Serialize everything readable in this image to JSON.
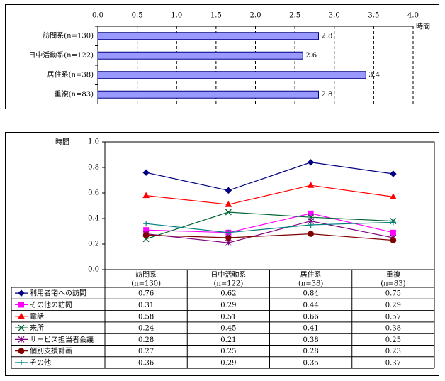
{
  "chart_data": [
    {
      "type": "bar",
      "orientation": "horizontal",
      "categories": [
        "訪問系(n=130)",
        "日中活動系(n=122)",
        "居住系(n=38)",
        "重複(n=83)"
      ],
      "values": [
        2.8,
        2.6,
        3.4,
        2.8
      ],
      "value_labels": [
        "2.8",
        "2.6",
        "3.4",
        "2.8"
      ],
      "xlim": [
        0.0,
        4.0
      ],
      "x_ticks": [
        "0.0",
        "0.5",
        "1.0",
        "1.5",
        "2.0",
        "2.5",
        "3.0",
        "3.5",
        "4.0"
      ],
      "xlabel": "時間",
      "grid": "dashed-vertical",
      "colors": {
        "bar_fill": "#9999ff",
        "bar_edge": "#000080"
      }
    },
    {
      "type": "line",
      "categories": [
        "訪問系\n(n=130)",
        "日中活動系\n(n=122)",
        "居住系\n(n=38)",
        "重複\n(n=83)"
      ],
      "ylabel": "時間",
      "ylim": [
        0.0,
        1.0
      ],
      "y_ticks": [
        "0.0",
        "0.2",
        "0.4",
        "0.6",
        "0.8",
        "1.0"
      ],
      "table": true,
      "series": [
        {
          "name": "利用者宅への訪問",
          "values": [
            0.76,
            0.62,
            0.84,
            0.75
          ],
          "labels": [
            "0.76",
            "0.62",
            "0.84",
            "0.75"
          ],
          "color": "#000080",
          "marker": "diamond"
        },
        {
          "name": "その他の訪問",
          "values": [
            0.31,
            0.29,
            0.44,
            0.29
          ],
          "labels": [
            "0.31",
            "0.29",
            "0.44",
            "0.29"
          ],
          "color": "#ff00ff",
          "marker": "square"
        },
        {
          "name": "電話",
          "values": [
            0.58,
            0.51,
            0.66,
            0.57
          ],
          "labels": [
            "0.58",
            "0.51",
            "0.66",
            "0.57"
          ],
          "color": "#ff0000",
          "marker": "triangle"
        },
        {
          "name": "来所",
          "values": [
            0.24,
            0.45,
            0.41,
            0.38
          ],
          "labels": [
            "0.24",
            "0.45",
            "0.41",
            "0.38"
          ],
          "color": "#006633",
          "marker": "x"
        },
        {
          "name": "サービス担当者会議",
          "values": [
            0.28,
            0.21,
            0.38,
            0.25
          ],
          "labels": [
            "0.28",
            "0.21",
            "0.38",
            "0.25"
          ],
          "color": "#800080",
          "marker": "star"
        },
        {
          "name": "個別支援計画",
          "values": [
            0.27,
            0.25,
            0.28,
            0.23
          ],
          "labels": [
            "0.27",
            "0.25",
            "0.28",
            "0.23"
          ],
          "color": "#800000",
          "marker": "circle"
        },
        {
          "name": "その他",
          "values": [
            0.36,
            0.29,
            0.35,
            0.37
          ],
          "labels": [
            "0.36",
            "0.29",
            "0.35",
            "0.37"
          ],
          "color": "#008080",
          "marker": "plus"
        }
      ]
    }
  ]
}
